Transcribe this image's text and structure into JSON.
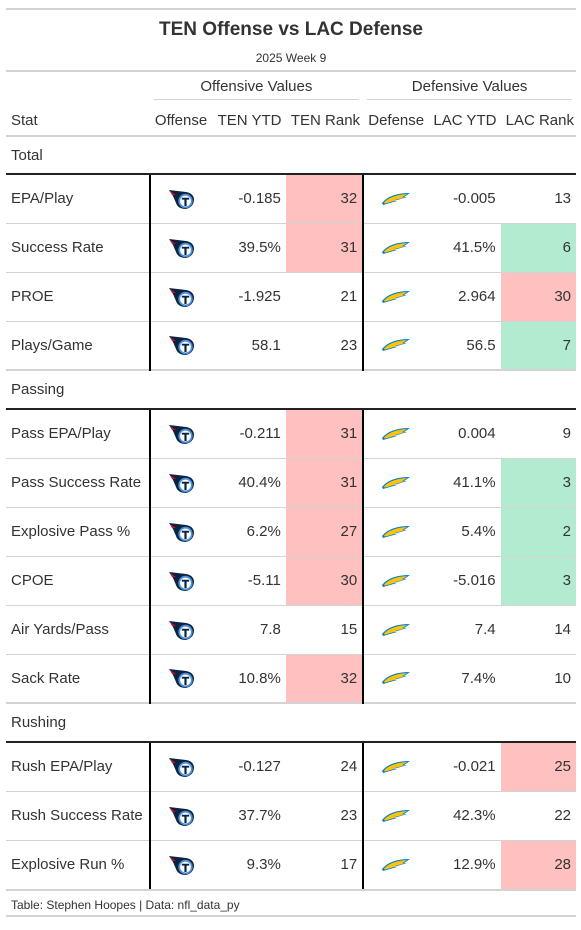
{
  "title": "TEN Offense vs LAC Defense",
  "subtitle": "2025 Week 9",
  "spanners": {
    "offense": "Offensive Values",
    "defense": "Defensive Values"
  },
  "columns": {
    "stat": "Stat",
    "offense": "Offense",
    "ten_ytd": "TEN YTD",
    "ten_rank": "TEN Rank",
    "defense": "Defense",
    "lac_ytd": "LAC YTD",
    "lac_rank": "LAC Rank"
  },
  "colors": {
    "bad": "#ffc0c0",
    "good": "#b3ebd0",
    "titans_navy": "#0c2340",
    "titans_blue": "#4b92db",
    "chargers_gold": "#ffc20e",
    "chargers_blue": "#0080c6"
  },
  "icons": {
    "offense": "titans-logo-icon",
    "defense": "chargers-bolt-icon"
  },
  "groups": [
    {
      "label": "Total",
      "rows": [
        {
          "stat": "EPA/Play",
          "ten_ytd": "-0.185",
          "ten_rank": "32",
          "ten_rank_tone": "bad",
          "lac_ytd": "-0.005",
          "lac_rank": "13",
          "lac_rank_tone": ""
        },
        {
          "stat": "Success Rate",
          "ten_ytd": "39.5%",
          "ten_rank": "31",
          "ten_rank_tone": "bad",
          "lac_ytd": "41.5%",
          "lac_rank": "6",
          "lac_rank_tone": "good"
        },
        {
          "stat": "PROE",
          "ten_ytd": "-1.925",
          "ten_rank": "21",
          "ten_rank_tone": "",
          "lac_ytd": "2.964",
          "lac_rank": "30",
          "lac_rank_tone": "bad"
        },
        {
          "stat": "Plays/Game",
          "ten_ytd": "58.1",
          "ten_rank": "23",
          "ten_rank_tone": "",
          "lac_ytd": "56.5",
          "lac_rank": "7",
          "lac_rank_tone": "good"
        }
      ]
    },
    {
      "label": "Passing",
      "rows": [
        {
          "stat": "Pass EPA/Play",
          "ten_ytd": "-0.211",
          "ten_rank": "31",
          "ten_rank_tone": "bad",
          "lac_ytd": "0.004",
          "lac_rank": "9",
          "lac_rank_tone": ""
        },
        {
          "stat": "Pass Success Rate",
          "ten_ytd": "40.4%",
          "ten_rank": "31",
          "ten_rank_tone": "bad",
          "lac_ytd": "41.1%",
          "lac_rank": "3",
          "lac_rank_tone": "good"
        },
        {
          "stat": "Explosive Pass %",
          "ten_ytd": "6.2%",
          "ten_rank": "27",
          "ten_rank_tone": "bad",
          "lac_ytd": "5.4%",
          "lac_rank": "2",
          "lac_rank_tone": "good"
        },
        {
          "stat": "CPOE",
          "ten_ytd": "-5.11",
          "ten_rank": "30",
          "ten_rank_tone": "bad",
          "lac_ytd": "-5.016",
          "lac_rank": "3",
          "lac_rank_tone": "good"
        },
        {
          "stat": "Air Yards/Pass",
          "ten_ytd": "7.8",
          "ten_rank": "15",
          "ten_rank_tone": "",
          "lac_ytd": "7.4",
          "lac_rank": "14",
          "lac_rank_tone": ""
        },
        {
          "stat": "Sack Rate",
          "ten_ytd": "10.8%",
          "ten_rank": "32",
          "ten_rank_tone": "bad",
          "lac_ytd": "7.4%",
          "lac_rank": "10",
          "lac_rank_tone": ""
        }
      ]
    },
    {
      "label": "Rushing",
      "rows": [
        {
          "stat": "Rush EPA/Play",
          "ten_ytd": "-0.127",
          "ten_rank": "24",
          "ten_rank_tone": "",
          "lac_ytd": "-0.021",
          "lac_rank": "25",
          "lac_rank_tone": "bad"
        },
        {
          "stat": "Rush Success Rate",
          "ten_ytd": "37.7%",
          "ten_rank": "23",
          "ten_rank_tone": "",
          "lac_ytd": "42.3%",
          "lac_rank": "22",
          "lac_rank_tone": ""
        },
        {
          "stat": "Explosive Run %",
          "ten_ytd": "9.3%",
          "ten_rank": "17",
          "ten_rank_tone": "",
          "lac_ytd": "12.9%",
          "lac_rank": "28",
          "lac_rank_tone": "bad"
        }
      ]
    }
  ],
  "footer": "Table: Stephen Hoopes | Data: nfl_data_py"
}
